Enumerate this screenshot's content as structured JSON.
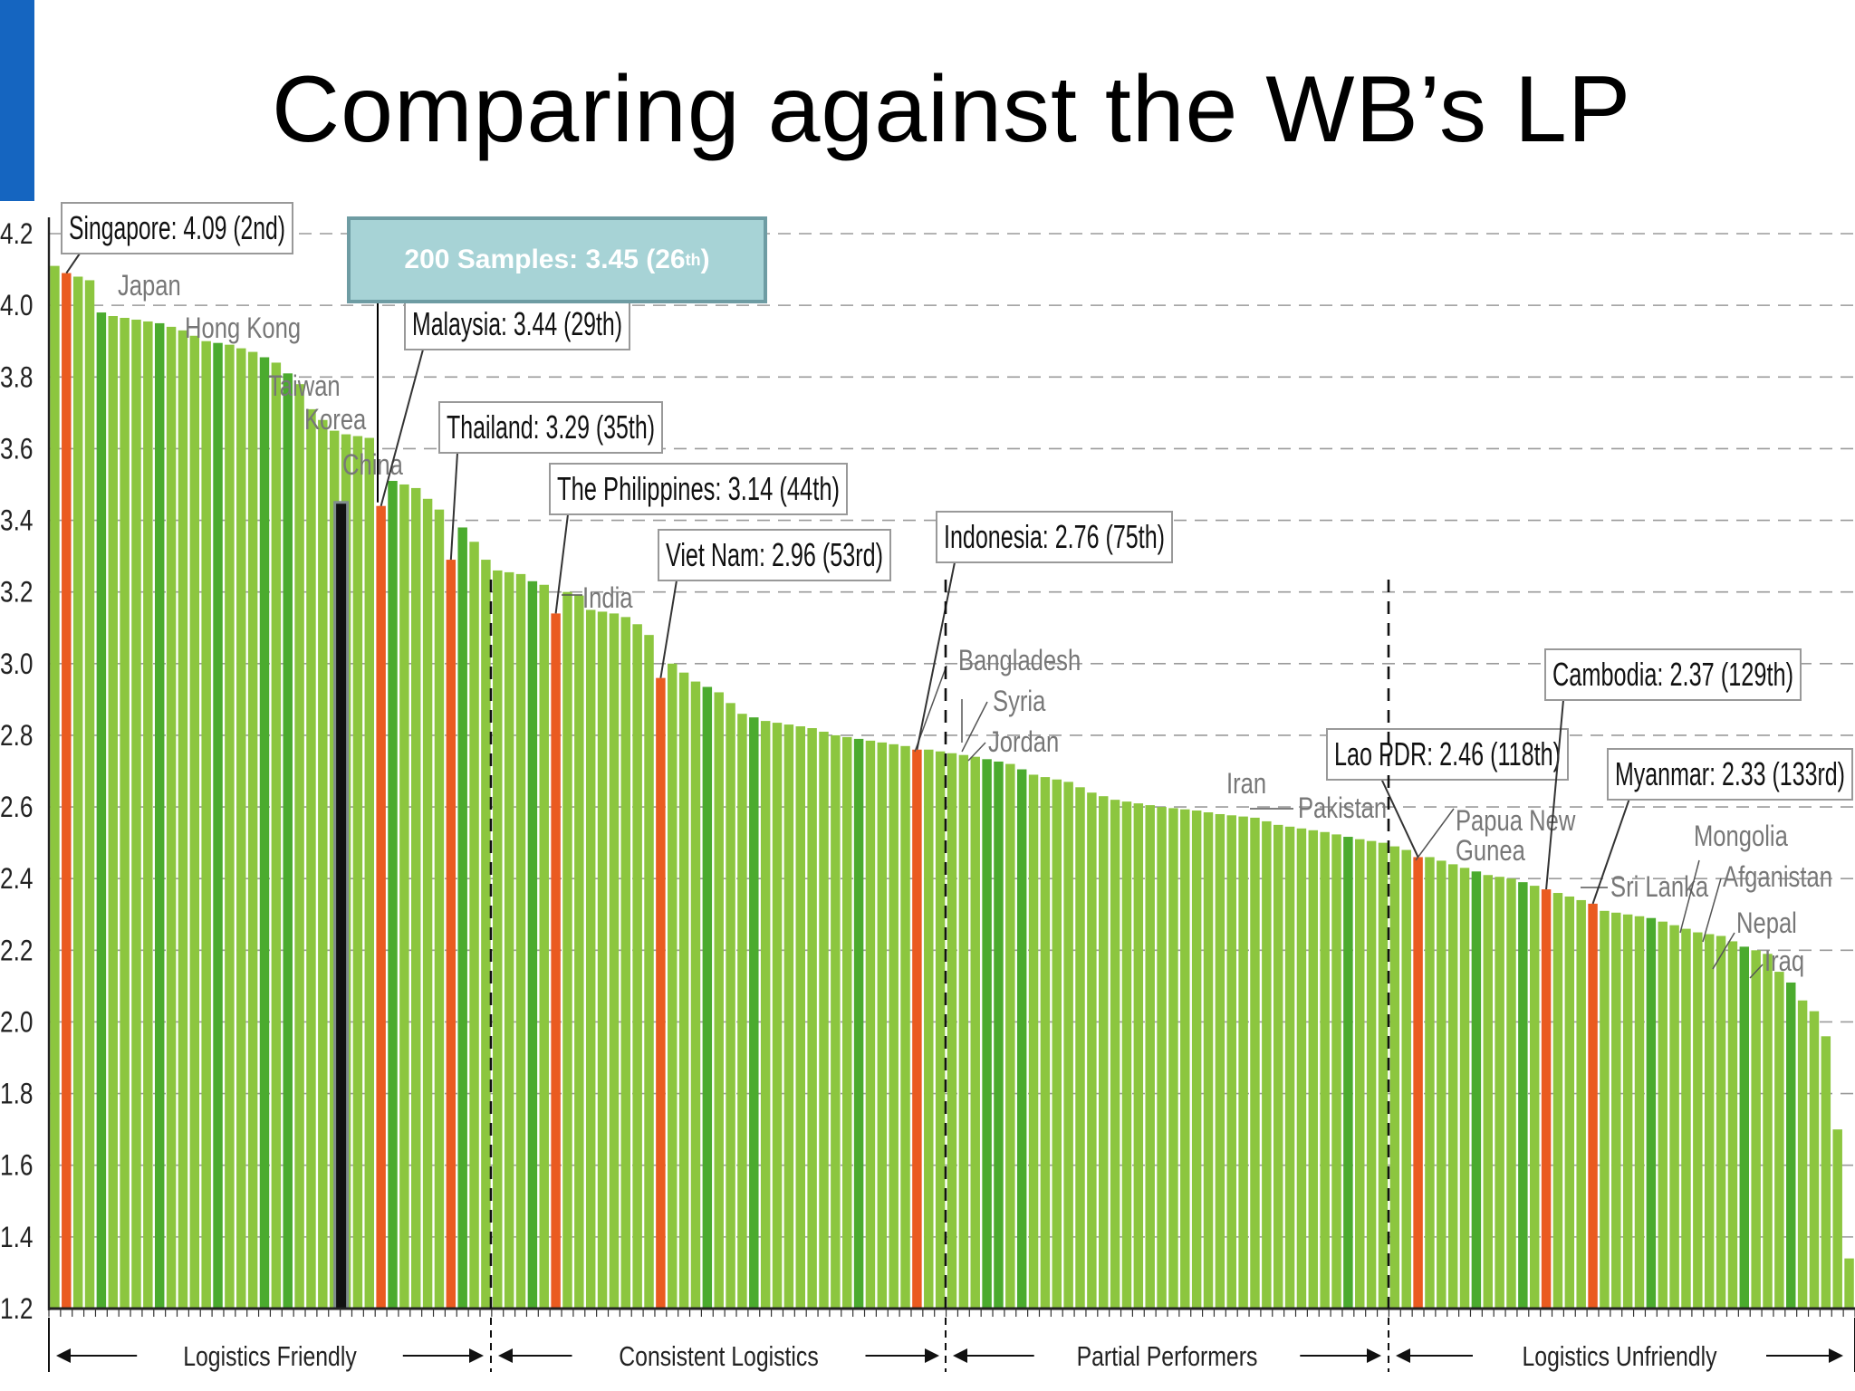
{
  "slide": {
    "title": "Comparing against the WB’s LP",
    "accent_color": "#1565C0"
  },
  "chart_data": {
    "type": "bar",
    "title": "",
    "xlabel": "",
    "ylabel": "",
    "ylim": [
      1.2,
      4.2
    ],
    "yticks": [
      "1.2",
      "1.4",
      "1.6",
      "1.8",
      "2.0",
      "2.2",
      "2.4",
      "2.6",
      "2.8",
      "3.0",
      "3.2",
      "3.4",
      "3.6",
      "3.8",
      "4.0",
      "4.2"
    ],
    "grid": "horizontal dashed",
    "bar_count": 155,
    "profile": [
      [
        1,
        4.11
      ],
      [
        2,
        4.09
      ],
      [
        3,
        4.08
      ],
      [
        4,
        4.07
      ],
      [
        5,
        3.98
      ],
      [
        6,
        3.97
      ],
      [
        8,
        3.96
      ],
      [
        10,
        3.95
      ],
      [
        12,
        3.93
      ],
      [
        14,
        3.9
      ],
      [
        16,
        3.89
      ],
      [
        18,
        3.87
      ],
      [
        20,
        3.84
      ],
      [
        22,
        3.78
      ],
      [
        23,
        3.71
      ],
      [
        25,
        3.65
      ],
      [
        26,
        3.64
      ],
      [
        28,
        3.63
      ],
      [
        29,
        3.56
      ],
      [
        30,
        3.51
      ],
      [
        32,
        3.49
      ],
      [
        34,
        3.43
      ],
      [
        36,
        3.38
      ],
      [
        37,
        3.34
      ],
      [
        38,
        3.29
      ],
      [
        39,
        3.26
      ],
      [
        41,
        3.25
      ],
      [
        42,
        3.23
      ],
      [
        44,
        3.21
      ],
      [
        46,
        3.19
      ],
      [
        47,
        3.15
      ],
      [
        49,
        3.14
      ],
      [
        50,
        3.13
      ],
      [
        51,
        3.11
      ],
      [
        52,
        3.08
      ],
      [
        53,
        3.03
      ],
      [
        54,
        3.0
      ],
      [
        56,
        2.95
      ],
      [
        58,
        2.92
      ],
      [
        60,
        2.86
      ],
      [
        62,
        2.84
      ],
      [
        64,
        2.83
      ],
      [
        66,
        2.82
      ],
      [
        68,
        2.8
      ],
      [
        70,
        2.79
      ],
      [
        72,
        2.78
      ],
      [
        74,
        2.77
      ],
      [
        76,
        2.76
      ],
      [
        78,
        2.75
      ],
      [
        80,
        2.74
      ],
      [
        83,
        2.72
      ],
      [
        85,
        2.69
      ],
      [
        88,
        2.67
      ],
      [
        90,
        2.64
      ],
      [
        92,
        2.62
      ],
      [
        94,
        2.61
      ],
      [
        96,
        2.6
      ],
      [
        99,
        2.59
      ],
      [
        101,
        2.58
      ],
      [
        104,
        2.57
      ],
      [
        106,
        2.55
      ],
      [
        108,
        2.54
      ],
      [
        110,
        2.53
      ],
      [
        113,
        2.51
      ],
      [
        115,
        2.5
      ],
      [
        118,
        2.47
      ],
      [
        120,
        2.45
      ],
      [
        122,
        2.43
      ],
      [
        124,
        2.41
      ],
      [
        126,
        2.4
      ],
      [
        128,
        2.38
      ],
      [
        129,
        2.37
      ],
      [
        130,
        2.36
      ],
      [
        132,
        2.34
      ],
      [
        133,
        2.33
      ],
      [
        134,
        2.31
      ],
      [
        136,
        2.3
      ],
      [
        138,
        2.29
      ],
      [
        140,
        2.27
      ],
      [
        142,
        2.25
      ],
      [
        144,
        2.24
      ],
      [
        146,
        2.21
      ],
      [
        148,
        2.19
      ],
      [
        149,
        2.14
      ],
      [
        150,
        2.11
      ],
      [
        151,
        2.06
      ],
      [
        152,
        2.03
      ],
      [
        153,
        1.96
      ],
      [
        154,
        1.7
      ],
      [
        155,
        1.34
      ]
    ],
    "highlight_color": "#ea5b20",
    "bar_color": "#8cc63f",
    "dark_bar_color": "#4bab2e",
    "samples_bar_color": "#111111",
    "highlighted": [
      {
        "label": "Singapore: 4.09 (2nd)",
        "rank": 2,
        "value": 4.09
      },
      {
        "label": "Malaysia: 3.44 (29th)",
        "rank": 29,
        "value": 3.44
      },
      {
        "label": "Thailand: 3.29 (35th)",
        "rank": 35,
        "value": 3.29
      },
      {
        "label": "The Philippines: 3.14 (44th)",
        "rank": 44,
        "value": 3.14
      },
      {
        "label": "Viet Nam: 2.96 (53rd)",
        "rank": 53,
        "value": 2.96
      },
      {
        "label": "Indonesia: 2.76 (75th)",
        "rank": 75,
        "value": 2.76
      },
      {
        "label": "Lao PDR: 2.46 (118th)",
        "rank": 118,
        "value": 2.46
      },
      {
        "label": "Cambodia: 2.37 (129th)",
        "rank": 129,
        "value": 2.37
      },
      {
        "label": "Myanmar: 2.33 (133rd)",
        "rank": 133,
        "value": 2.33
      }
    ],
    "samples": {
      "label_prefix": "200 Samples: 3.45 (26",
      "label_sup": "th",
      "label_suffix": ")",
      "value": 3.45,
      "rank": 26
    },
    "dark_bar_ranks": [
      5,
      10,
      15,
      19,
      21,
      30,
      35,
      36,
      42,
      57,
      61,
      70,
      81,
      82,
      84,
      112,
      123,
      127,
      133,
      138,
      146,
      150
    ],
    "annotations": [
      "Japan",
      "Hong Kong",
      "Taiwan",
      "Korea",
      "China",
      "India",
      "Bangladesh",
      "Syria",
      "Jordan",
      "Iran",
      "Pakistan",
      "Papua New",
      "Gunea",
      "Sri Lanka",
      "Mongolia",
      "Afganistan",
      "Nepal",
      "Iraq"
    ],
    "groups": [
      "Logistics Friendly",
      "Consistent Logistics",
      "Partial Performers",
      "Logistics Unfriendly"
    ]
  }
}
